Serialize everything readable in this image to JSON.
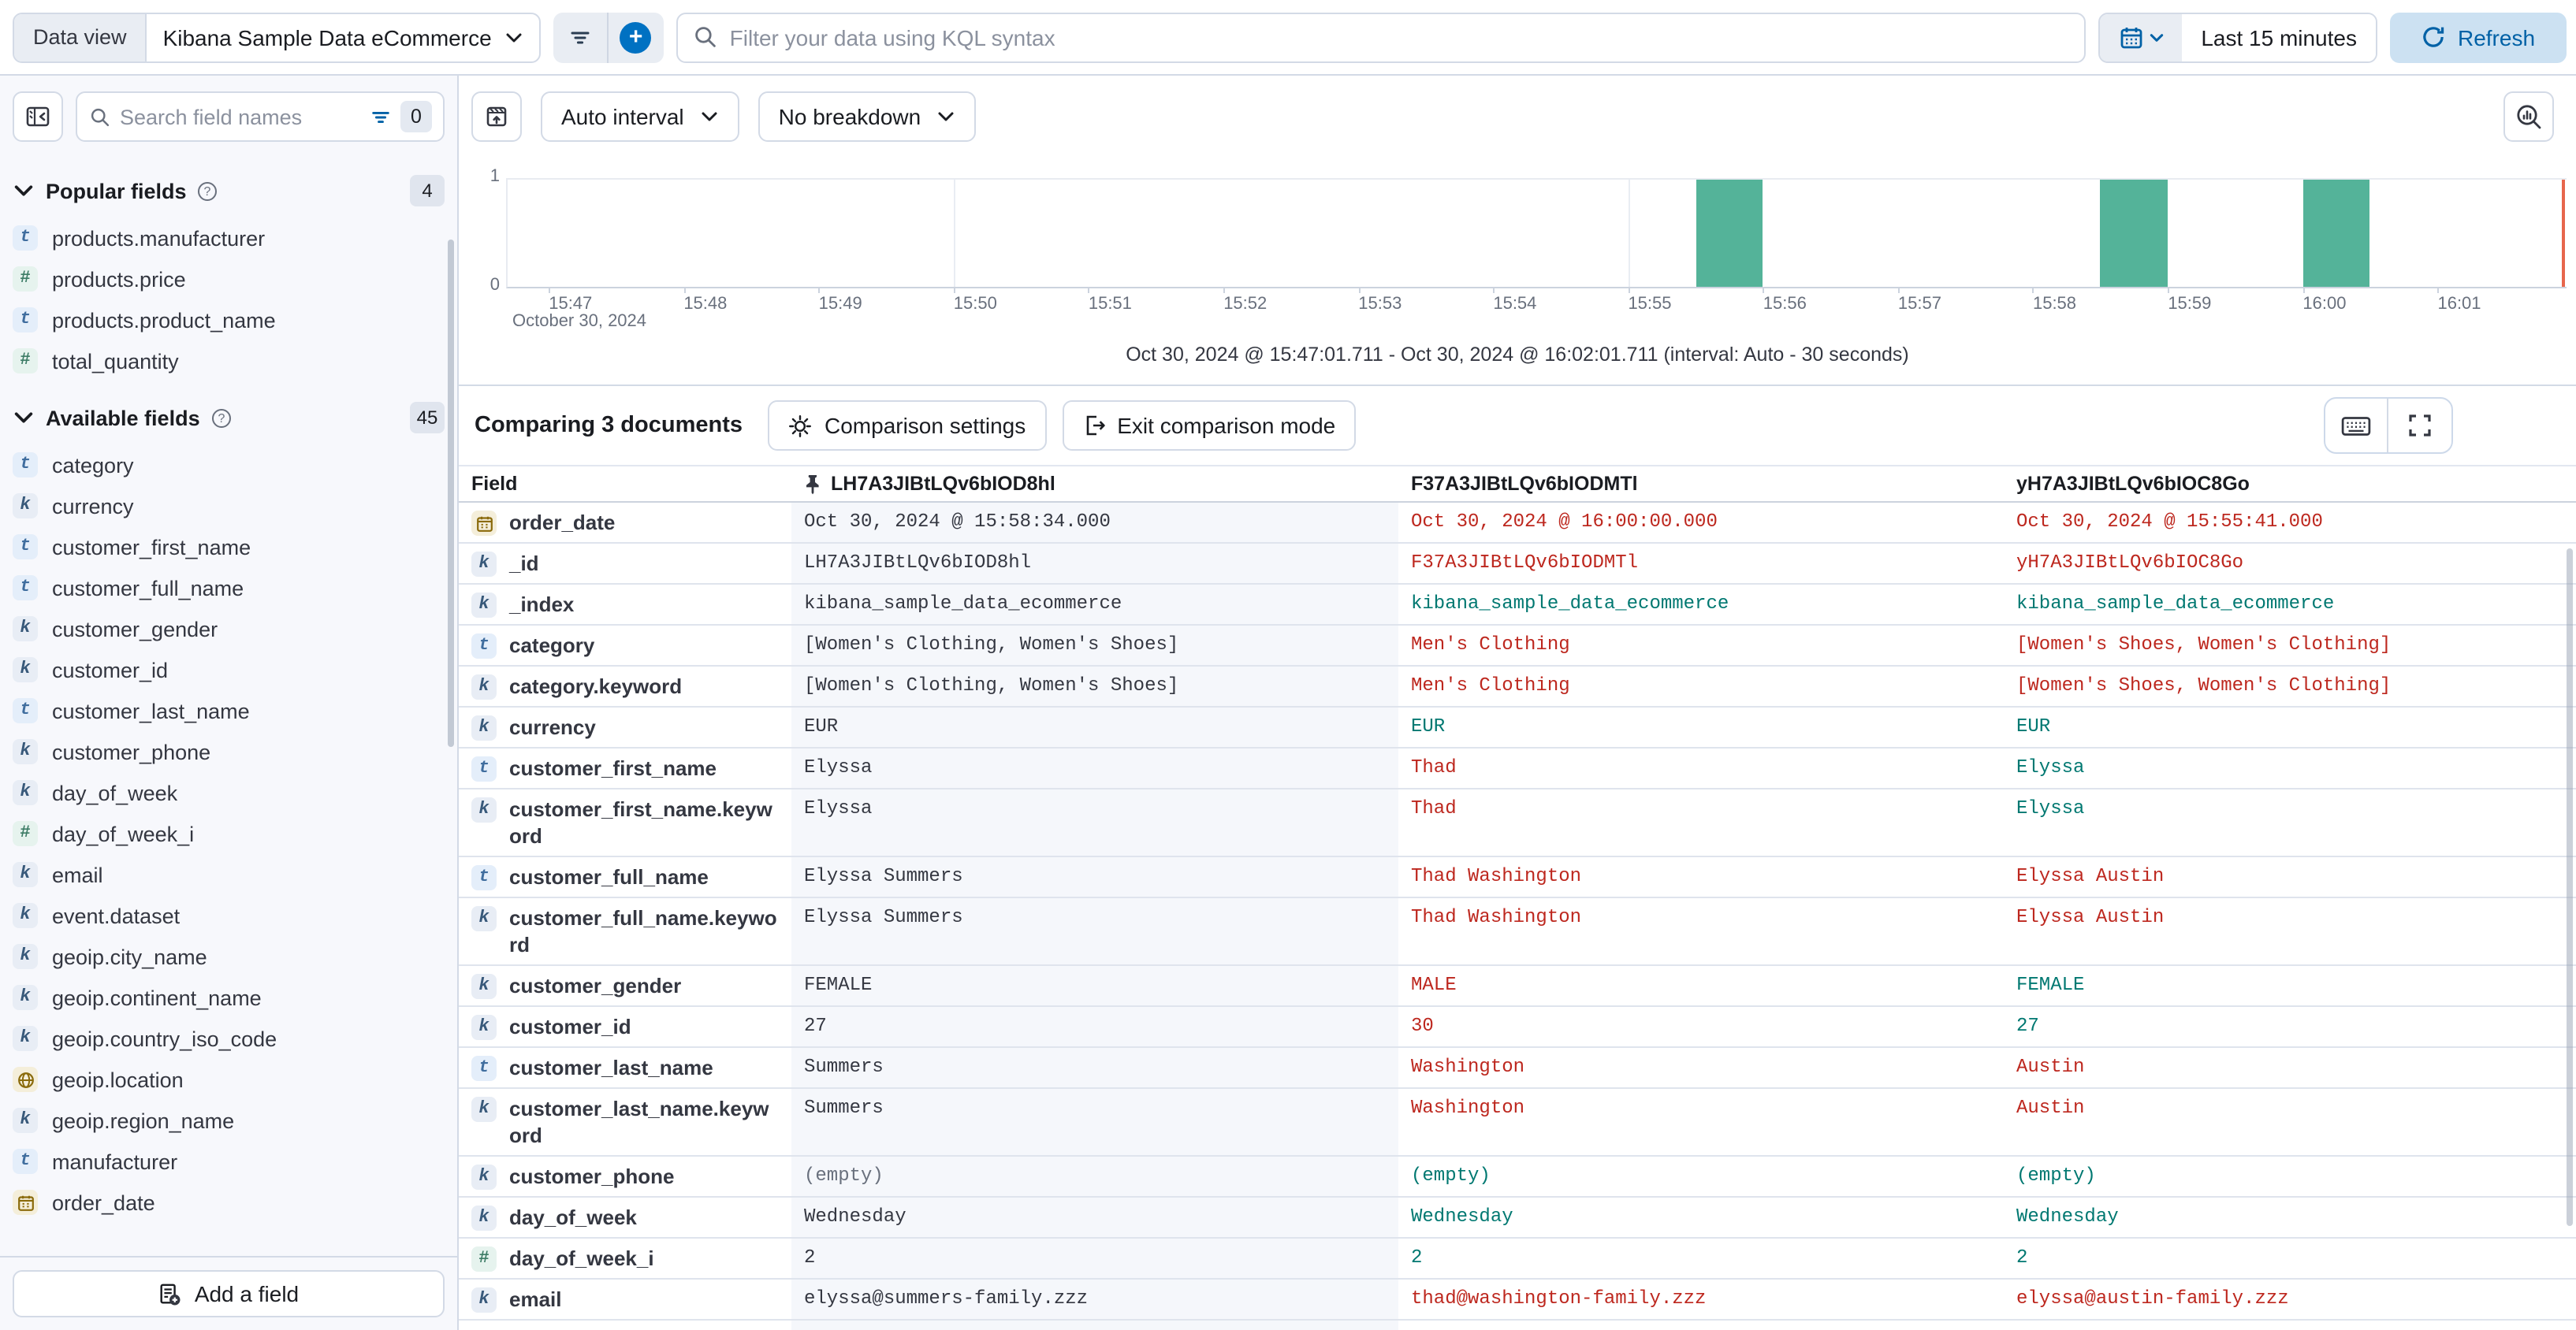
{
  "topbar": {
    "data_view_label": "Data view",
    "data_view_value": "Kibana Sample Data eCommerce",
    "kql_placeholder": "Filter your data using KQL syntax",
    "time_range": "Last 15 minutes",
    "refresh_label": "Refresh"
  },
  "sidebar": {
    "search_placeholder": "Search field names",
    "filter_count": "0",
    "sections": [
      {
        "title": "Popular fields",
        "count": "4",
        "items": [
          {
            "name": "products.manufacturer",
            "type": "text"
          },
          {
            "name": "products.price",
            "type": "number"
          },
          {
            "name": "products.product_name",
            "type": "text"
          },
          {
            "name": "total_quantity",
            "type": "number"
          }
        ]
      },
      {
        "title": "Available fields",
        "count": "45",
        "items": [
          {
            "name": "category",
            "type": "text"
          },
          {
            "name": "currency",
            "type": "keyword"
          },
          {
            "name": "customer_first_name",
            "type": "text"
          },
          {
            "name": "customer_full_name",
            "type": "text"
          },
          {
            "name": "customer_gender",
            "type": "keyword"
          },
          {
            "name": "customer_id",
            "type": "keyword"
          },
          {
            "name": "customer_last_name",
            "type": "text"
          },
          {
            "name": "customer_phone",
            "type": "keyword"
          },
          {
            "name": "day_of_week",
            "type": "keyword"
          },
          {
            "name": "day_of_week_i",
            "type": "number"
          },
          {
            "name": "email",
            "type": "keyword"
          },
          {
            "name": "event.dataset",
            "type": "keyword"
          },
          {
            "name": "geoip.city_name",
            "type": "keyword"
          },
          {
            "name": "geoip.continent_name",
            "type": "keyword"
          },
          {
            "name": "geoip.country_iso_code",
            "type": "keyword"
          },
          {
            "name": "geoip.location",
            "type": "geo"
          },
          {
            "name": "geoip.region_name",
            "type": "keyword"
          },
          {
            "name": "manufacturer",
            "type": "text"
          },
          {
            "name": "order_date",
            "type": "date"
          }
        ]
      }
    ],
    "add_field_label": "Add a field"
  },
  "chart": {
    "interval_label": "Auto interval",
    "breakdown_label": "No breakdown",
    "summary": "Oct 30, 2024 @ 15:47:01.711 - Oct 30, 2024 @ 16:02:01.711 (interval: Auto - 30 seconds)",
    "chart_data": {
      "type": "bar",
      "x_ticks": [
        "15:47",
        "15:48",
        "15:49",
        "15:50",
        "15:51",
        "15:52",
        "15:53",
        "15:54",
        "15:55",
        "15:56",
        "15:57",
        "15:58",
        "15:59",
        "16:00",
        "16:01"
      ],
      "x_axis_date_label": "October 30, 2024",
      "y_ticks": [
        "1",
        "0"
      ],
      "ylim": [
        0,
        1
      ],
      "interval_seconds": 30,
      "bars": [
        {
          "x": "15:55:30",
          "count": 1
        },
        {
          "x": "15:58:30",
          "count": 1
        },
        {
          "x": "16:00:00",
          "count": 1
        }
      ],
      "bar_color": "#54b399",
      "gridline_ticks": [
        "15:50",
        "15:55",
        "16:00"
      ],
      "current_time_marker_color": "#e7664c"
    }
  },
  "comparison": {
    "title": "Comparing 3 documents",
    "settings_label": "Comparison settings",
    "exit_label": "Exit comparison mode"
  },
  "table": {
    "field_header": "Field",
    "doc_headers": [
      {
        "id": "LH7A3JIBtLQv6bIOD8hl",
        "pinned": true
      },
      {
        "id": "F37A3JIBtLQv6bIODMTl",
        "pinned": false
      },
      {
        "id": "yH7A3JIBtLQv6bIOC8Go",
        "pinned": false
      }
    ],
    "diff_colors": {
      "base": "#343741",
      "diff": "#bd271e",
      "same": "#007871",
      "muted": "#69707d"
    },
    "rows": [
      {
        "field": "order_date",
        "type": "date",
        "cells": [
          [
            "Oct 30, 2024 @ 15:58:34.000",
            "base"
          ],
          [
            "Oct 30, 2024 @ 16:00:00.000",
            "diff"
          ],
          [
            "Oct 30, 2024 @ 15:55:41.000",
            "diff"
          ]
        ]
      },
      {
        "field": "_id",
        "type": "keyword",
        "cells": [
          [
            "LH7A3JIBtLQv6bIOD8hl",
            "base"
          ],
          [
            "F37A3JIBtLQv6bIODMTl",
            "diff"
          ],
          [
            "yH7A3JIBtLQv6bIOC8Go",
            "diff"
          ]
        ]
      },
      {
        "field": "_index",
        "type": "keyword",
        "cells": [
          [
            "kibana_sample_data_ecommerce",
            "base"
          ],
          [
            "kibana_sample_data_ecommerce",
            "same"
          ],
          [
            "kibana_sample_data_ecommerce",
            "same"
          ]
        ]
      },
      {
        "field": "category",
        "type": "text",
        "cells": [
          [
            "[Women's Clothing, Women's Shoes]",
            "base"
          ],
          [
            "Men's Clothing",
            "diff"
          ],
          [
            "[Women's Shoes, Women's Clothing]",
            "diff"
          ]
        ]
      },
      {
        "field": "category.keyword",
        "type": "keyword",
        "cells": [
          [
            "[Women's Clothing, Women's Shoes]",
            "base"
          ],
          [
            "Men's Clothing",
            "diff"
          ],
          [
            "[Women's Shoes, Women's Clothing]",
            "diff"
          ]
        ]
      },
      {
        "field": "currency",
        "type": "keyword",
        "cells": [
          [
            "EUR",
            "base"
          ],
          [
            "EUR",
            "same"
          ],
          [
            "EUR",
            "same"
          ]
        ]
      },
      {
        "field": "customer_first_name",
        "type": "text",
        "cells": [
          [
            "Elyssa",
            "base"
          ],
          [
            "Thad",
            "diff"
          ],
          [
            "Elyssa",
            "same"
          ]
        ]
      },
      {
        "field": "customer_first_name.keyword",
        "type": "keyword",
        "cells": [
          [
            "Elyssa",
            "base"
          ],
          [
            "Thad",
            "diff"
          ],
          [
            "Elyssa",
            "same"
          ]
        ]
      },
      {
        "field": "customer_full_name",
        "type": "text",
        "cells": [
          [
            "Elyssa Summers",
            "base"
          ],
          [
            "Thad Washington",
            "diff"
          ],
          [
            "Elyssa Austin",
            "diff"
          ]
        ]
      },
      {
        "field": "customer_full_name.keyword",
        "type": "keyword",
        "cells": [
          [
            "Elyssa Summers",
            "base"
          ],
          [
            "Thad Washington",
            "diff"
          ],
          [
            "Elyssa Austin",
            "diff"
          ]
        ]
      },
      {
        "field": "customer_gender",
        "type": "keyword",
        "cells": [
          [
            "FEMALE",
            "base"
          ],
          [
            "MALE",
            "diff"
          ],
          [
            "FEMALE",
            "same"
          ]
        ]
      },
      {
        "field": "customer_id",
        "type": "keyword",
        "cells": [
          [
            "27",
            "base"
          ],
          [
            "30",
            "diff"
          ],
          [
            "27",
            "same"
          ]
        ]
      },
      {
        "field": "customer_last_name",
        "type": "text",
        "cells": [
          [
            "Summers",
            "base"
          ],
          [
            "Washington",
            "diff"
          ],
          [
            "Austin",
            "diff"
          ]
        ]
      },
      {
        "field": "customer_last_name.keyword",
        "type": "keyword",
        "cells": [
          [
            "Summers",
            "base"
          ],
          [
            "Washington",
            "diff"
          ],
          [
            "Austin",
            "diff"
          ]
        ]
      },
      {
        "field": "customer_phone",
        "type": "keyword",
        "cells": [
          [
            "(empty)",
            "muted"
          ],
          [
            "(empty)",
            "same"
          ],
          [
            "(empty)",
            "same"
          ]
        ]
      },
      {
        "field": "day_of_week",
        "type": "keyword",
        "cells": [
          [
            "Wednesday",
            "base"
          ],
          [
            "Wednesday",
            "same"
          ],
          [
            "Wednesday",
            "same"
          ]
        ]
      },
      {
        "field": "day_of_week_i",
        "type": "number",
        "cells": [
          [
            "2",
            "base"
          ],
          [
            "2",
            "same"
          ],
          [
            "2",
            "same"
          ]
        ]
      },
      {
        "field": "email",
        "type": "keyword",
        "cells": [
          [
            "elyssa@summers-family.zzz",
            "base"
          ],
          [
            "thad@washington-family.zzz",
            "diff"
          ],
          [
            "elyssa@austin-family.zzz",
            "diff"
          ]
        ]
      }
    ]
  }
}
